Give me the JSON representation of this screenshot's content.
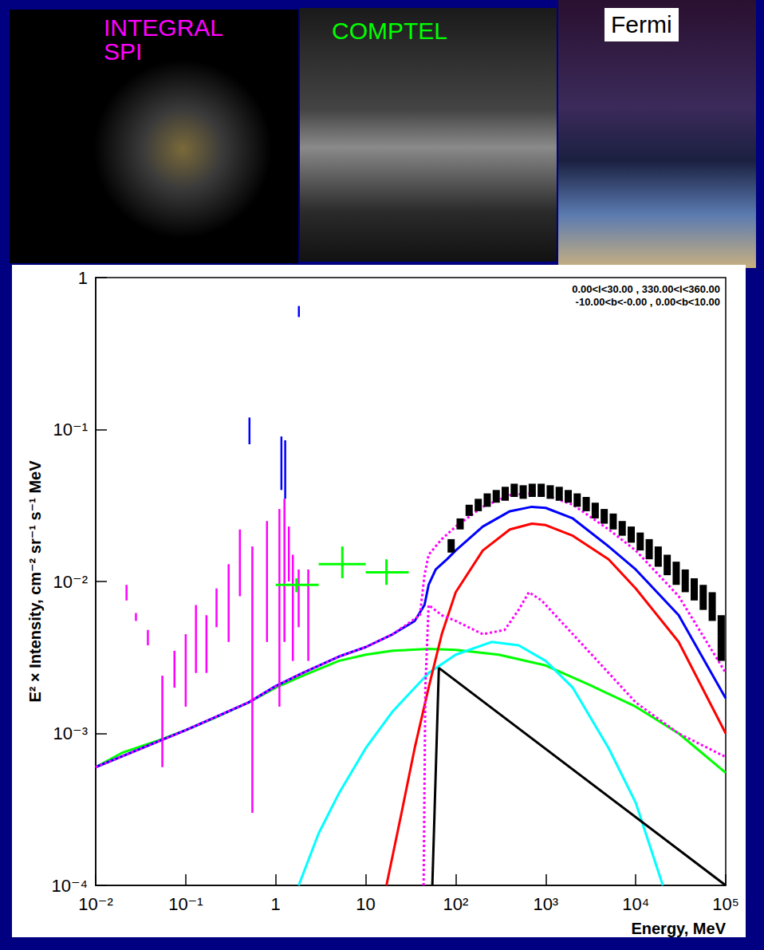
{
  "images": [
    {
      "label": "INTEGRAL SPI",
      "color": "#ff00ff"
    },
    {
      "label": "COMPTEL",
      "color": "#00ff00"
    },
    {
      "label": "Fermi",
      "color": "#000000"
    }
  ],
  "chart_data": {
    "type": "line",
    "xlabel": "Energy, MeV",
    "ylabel": "E² × Intensity, cm⁻² sr⁻¹ s⁻¹ MeV",
    "annotations": [
      "0.00<l<30.00 , 330.00<l<360.00",
      "-10.00<b<-0.00 , 0.00<b<10.00"
    ],
    "log": true,
    "grid": false,
    "xlim": [
      0.01,
      100000
    ],
    "xticks": [
      {
        "value": 0.01,
        "label": "10⁻²"
      },
      {
        "value": 0.1,
        "label": "10⁻¹"
      },
      1,
      10,
      {
        "value": 100,
        "label": "10²"
      },
      {
        "value": 1000,
        "label": "10³"
      },
      {
        "value": 10000,
        "label": "10⁴"
      },
      {
        "value": 100000,
        "label": "10⁵"
      }
    ],
    "ylim": [
      0.0001,
      1
    ],
    "yticks": [
      {
        "value": 0.0001,
        "label": "10⁻⁴"
      },
      {
        "value": 0.001,
        "label": "10⁻³"
      },
      {
        "value": 0.01,
        "label": "10⁻²"
      },
      {
        "value": 0.1,
        "label": "10⁻¹"
      },
      1
    ],
    "series": [
      {
        "type": "line",
        "color": "#00ff00",
        "line_style": "solid",
        "x": [
          0.01,
          0.02,
          0.05,
          0.1,
          0.2,
          0.5,
          1,
          2,
          5,
          10,
          20,
          50,
          100,
          300,
          1000,
          3000,
          10000,
          30000,
          100000
        ],
        "values": [
          0.0006,
          0.00075,
          0.0009,
          0.00105,
          0.00125,
          0.0016,
          0.002,
          0.0024,
          0.003,
          0.0033,
          0.0035,
          0.0036,
          0.00355,
          0.0033,
          0.0028,
          0.0021,
          0.0015,
          0.001,
          0.00055
        ]
      },
      {
        "type": "line",
        "color": "#00ffff",
        "line_style": "solid",
        "x": [
          1.8,
          3,
          5,
          10,
          20,
          50,
          100,
          250,
          500,
          1000,
          2000,
          5000,
          10000,
          20000
        ],
        "values": [
          0.0001,
          0.00022,
          0.0004,
          0.0008,
          0.0014,
          0.0025,
          0.0033,
          0.004,
          0.0038,
          0.003,
          0.002,
          0.0008,
          0.00035,
          0.0001
        ]
      },
      {
        "type": "line",
        "color": "#ff0000",
        "line_style": "solid",
        "x": [
          17,
          25,
          35,
          50,
          70,
          100,
          200,
          400,
          700,
          1000,
          2000,
          5000,
          10000,
          30000,
          100000
        ],
        "values": [
          0.0001,
          0.0003,
          0.0008,
          0.002,
          0.0045,
          0.0085,
          0.016,
          0.022,
          0.024,
          0.0235,
          0.02,
          0.014,
          0.009,
          0.004,
          0.001
        ]
      },
      {
        "type": "line",
        "color": "#000000",
        "line_style": "solid",
        "x": [
          55,
          65,
          100000
        ],
        "values": [
          0.0001,
          0.0027,
          0.0001
        ]
      },
      {
        "type": "line",
        "color": "#0000ff",
        "line_style": "solid",
        "x": [
          0.01,
          0.1,
          0.5,
          1,
          2,
          5,
          10,
          20,
          35,
          45,
          50,
          60,
          80,
          100,
          200,
          400,
          700,
          1000,
          2000,
          5000,
          10000,
          30000,
          100000
        ],
        "values": [
          0.0006,
          0.00105,
          0.0016,
          0.00205,
          0.0025,
          0.0032,
          0.0037,
          0.0045,
          0.0055,
          0.007,
          0.0095,
          0.012,
          0.014,
          0.016,
          0.023,
          0.029,
          0.031,
          0.0305,
          0.026,
          0.017,
          0.012,
          0.006,
          0.0017
        ]
      },
      {
        "type": "line",
        "color": "#ff00ff",
        "line_style": "dotted",
        "x": [
          0.01,
          0.1,
          0.5,
          1,
          2,
          5,
          10,
          20,
          40,
          45,
          50,
          70,
          100,
          200,
          400,
          700,
          1000,
          2000,
          5000,
          10000,
          30000,
          100000
        ],
        "values": [
          0.0006,
          0.00105,
          0.0016,
          0.00205,
          0.0025,
          0.0032,
          0.0037,
          0.0045,
          0.006,
          0.011,
          0.015,
          0.019,
          0.023,
          0.031,
          0.037,
          0.038,
          0.037,
          0.032,
          0.022,
          0.016,
          0.008,
          0.0025
        ]
      },
      {
        "type": "line",
        "color": "#ff00ff",
        "line_style": "dotted",
        "x": [
          44,
          46,
          50,
          70,
          100,
          200,
          350,
          500,
          650,
          900,
          2000,
          5000,
          10000,
          30000,
          100000
        ],
        "values": [
          0.0001,
          0.002,
          0.007,
          0.006,
          0.0055,
          0.0045,
          0.0048,
          0.0065,
          0.0085,
          0.0075,
          0.0045,
          0.0025,
          0.0016,
          0.001,
          0.0007
        ]
      },
      {
        "type": "errorbar",
        "color": "#ff00ff",
        "marker": "line",
        "x": [
          0.022,
          0.028,
          0.038,
          0.055,
          0.075,
          0.1,
          0.13,
          0.17,
          0.22,
          0.3,
          0.4,
          0.55,
          0.8,
          1.1,
          1.25,
          1.4,
          1.55,
          1.8,
          2.3
        ],
        "low": [
          0.0075,
          0.0055,
          0.0038,
          0.0006,
          0.002,
          0.0015,
          0.0025,
          0.0025,
          0.005,
          0.004,
          0.008,
          0.0003,
          0.004,
          0.0015,
          0.004,
          0.01,
          0.003,
          0.005,
          0.003
        ],
        "high": [
          0.0095,
          0.0062,
          0.0048,
          0.0024,
          0.0035,
          0.0045,
          0.007,
          0.006,
          0.009,
          0.013,
          0.022,
          0.017,
          0.025,
          0.03,
          0.035,
          0.023,
          0.015,
          0.012,
          0.012
        ]
      },
      {
        "type": "errorbar",
        "color": "#0000ff",
        "marker": "line",
        "x": [
          0.511,
          1.157,
          1.275,
          1.809
        ],
        "low": [
          0.08,
          0.04,
          0.035,
          0.55
        ],
        "high": [
          0.12,
          0.09,
          0.085,
          0.65
        ]
      },
      {
        "type": "cross",
        "color": "#00ff00",
        "x": [
          1.7,
          5.5,
          17
        ],
        "x_low": [
          1,
          3,
          10
        ],
        "x_high": [
          3,
          10,
          30
        ],
        "values": [
          0.0095,
          0.013,
          0.0115
        ],
        "low": [
          0.0085,
          0.0105,
          0.0095
        ],
        "high": [
          0.0105,
          0.017,
          0.014
        ]
      },
      {
        "type": "errorbar",
        "color": "#000000",
        "marker": "box",
        "x": [
          89,
          112,
          141,
          178,
          224,
          282,
          355,
          447,
          562,
          708,
          891,
          1122,
          1413,
          1778,
          2239,
          2818,
          3548,
          4467,
          5623,
          7079,
          8913,
          11220,
          14125,
          17783,
          22387,
          28184,
          35481,
          44668,
          56234,
          70795,
          89125
        ],
        "low": [
          0.0155,
          0.022,
          0.027,
          0.029,
          0.031,
          0.033,
          0.034,
          0.036,
          0.035,
          0.036,
          0.036,
          0.035,
          0.034,
          0.033,
          0.031,
          0.029,
          0.026,
          0.024,
          0.022,
          0.02,
          0.018,
          0.016,
          0.014,
          0.0125,
          0.011,
          0.0095,
          0.0085,
          0.0075,
          0.0065,
          0.0055,
          0.003
        ],
        "high": [
          0.019,
          0.026,
          0.032,
          0.035,
          0.038,
          0.04,
          0.042,
          0.044,
          0.043,
          0.044,
          0.044,
          0.043,
          0.042,
          0.04,
          0.038,
          0.036,
          0.033,
          0.03,
          0.028,
          0.025,
          0.023,
          0.021,
          0.019,
          0.017,
          0.015,
          0.0135,
          0.012,
          0.0105,
          0.0095,
          0.0085,
          0.006
        ]
      }
    ]
  }
}
